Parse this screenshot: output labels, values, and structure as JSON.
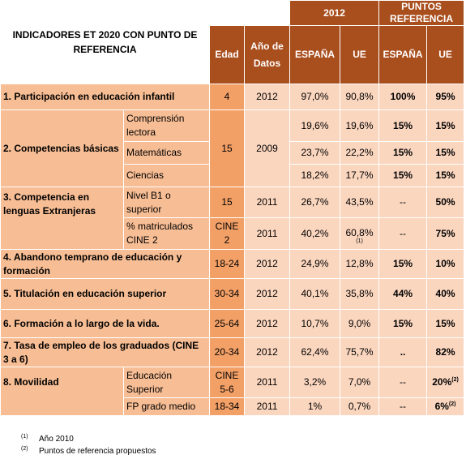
{
  "title": "INDICADORES ET 2020  CON PUNTO DE REFERENCIA",
  "headers": {
    "year_group": "2012",
    "ref_group": "PUNTOS REFERENCIA",
    "edad": "Edad",
    "anio_datos": "Año de Datos",
    "espana": "ESPAÑA",
    "ue": "UE",
    "espana_ref": "ESPAÑA",
    "ue_ref": "UE"
  },
  "rows": [
    {
      "label": "1. Participación en educación infantil",
      "edad": "4",
      "anio": "2012",
      "es": "97,0%",
      "ue": "90,8%",
      "es_ref": "100%",
      "ue_ref": "95%"
    },
    {
      "label": "2. Competencias básicas",
      "edad": "15",
      "anio": "2009",
      "subs": [
        {
          "label": "Comprensión lectora",
          "es": "19,6%",
          "ue": "19,6%",
          "es_ref": "15%",
          "ue_ref": "15%"
        },
        {
          "label": "Matemáticas",
          "es": "23,7%",
          "ue": "22,2%",
          "es_ref": "15%",
          "ue_ref": "15%"
        },
        {
          "label": "Ciencias",
          "es": "18,2%",
          "ue": "17,7%",
          "es_ref": "15%",
          "ue_ref": "15%"
        }
      ]
    },
    {
      "label": "3. Competencia en lenguas Extranjeras",
      "subs": [
        {
          "label": "Nivel B1 o superior",
          "edad": "15",
          "anio": "2011",
          "es": "26,7%",
          "ue": "43,5%",
          "es_ref": "--",
          "ue_ref": "50%"
        },
        {
          "label": "% matriculados CINE 2",
          "edad": "CINE 2",
          "anio": "2011",
          "es": "40,2%",
          "ue": "60,8%",
          "ue_note": "(1)",
          "es_ref": "--",
          "ue_ref": "75%"
        }
      ]
    },
    {
      "label": "4. Abandono temprano de educación y formación",
      "edad": "18-24",
      "anio": "2012",
      "es": "24,9%",
      "ue": "12,8%",
      "es_ref": "15%",
      "ue_ref": "10%"
    },
    {
      "label": "5. Titulación en educación superior",
      "edad": "30-34",
      "anio": "2012",
      "es": "40,1%",
      "ue": "35,8%",
      "es_ref": "44%",
      "ue_ref": "40%"
    },
    {
      "label": "6. Formación a lo largo de la vida.",
      "edad": "25-64",
      "anio": "2012",
      "es": "10,7%",
      "ue": "9,0%",
      "es_ref": "15%",
      "ue_ref": "15%"
    },
    {
      "label": "7. Tasa de empleo de los graduados (CINE 3 a 6)",
      "edad": "20-34",
      "anio": "2012",
      "es": "62,4%",
      "ue": "75,7%",
      "es_ref": "..",
      "ue_ref": "82%"
    },
    {
      "label": "8. Movilidad",
      "subs": [
        {
          "label": "Educación Superior",
          "edad": "CINE 5-6",
          "anio": "2011",
          "es": "3,2%",
          "ue": "7,0%",
          "es_ref": "--",
          "ue_ref": "20%",
          "ue_ref_note": "(2)"
        },
        {
          "label": "FP grado medio",
          "edad": "18-34",
          "anio": "2011",
          "es": "1%",
          "ue": "0,7%",
          "es_ref": "--",
          "ue_ref": "6%",
          "ue_ref_note": "(2)"
        }
      ]
    }
  ],
  "footnotes": [
    {
      "mark": "(1)",
      "text": "Año 2010"
    },
    {
      "mark": "(2)",
      "text": "Puntos de referencia propuestos"
    }
  ]
}
